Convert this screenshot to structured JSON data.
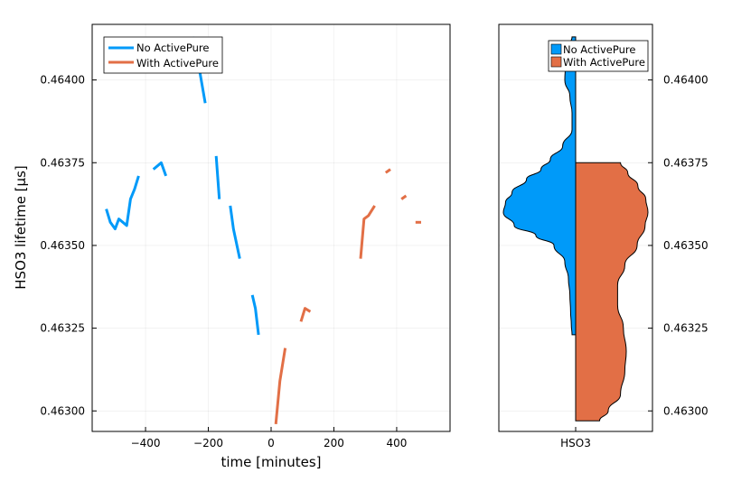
{
  "colors": {
    "no_activepure": "#009af9",
    "with_activepure": "#e26f46"
  },
  "chart_data": [
    {
      "type": "line",
      "xlabel": "time [minutes]",
      "ylabel": "HSO3 lifetime [µs]",
      "xlim": [
        -570,
        570
      ],
      "ylim": [
        0.462938,
        0.464168
      ],
      "xticks": [
        -400,
        -200,
        0,
        200,
        400
      ],
      "xtick_labels": [
        "−400",
        "−200",
        "0",
        "200",
        "400"
      ],
      "yticks": [
        0.463,
        0.46325,
        0.4635,
        0.46375,
        0.464
      ],
      "ytick_labels": [
        "0.46300",
        "0.46325",
        "0.46350",
        "0.46375",
        "0.46400"
      ],
      "grid": true,
      "legend": "top-left",
      "series": [
        {
          "name": "No ActivePure",
          "color": "#009af9",
          "segments": [
            [
              [
                -525,
                0.46361
              ],
              [
                -512,
                0.46357
              ],
              [
                -497,
                0.46355
              ],
              [
                -485,
                0.46358
              ],
              [
                -472,
                0.46357
              ],
              [
                -460,
                0.46356
              ],
              [
                -448,
                0.46364
              ],
              [
                -435,
                0.46367
              ],
              [
                -422,
                0.46371
              ]
            ],
            [
              [
                -375,
                0.46373
              ],
              [
                -350,
                0.46375
              ],
              [
                -335,
                0.46371
              ]
            ],
            [
              [
                -250,
                0.46413
              ],
              [
                -230,
                0.46404
              ],
              [
                -210,
                0.46393
              ]
            ],
            [
              [
                -175,
                0.46377
              ],
              [
                -165,
                0.46364
              ]
            ],
            [
              [
                -130,
                0.46362
              ],
              [
                -120,
                0.46355
              ],
              [
                -100,
                0.46346
              ]
            ],
            [
              [
                -60,
                0.46335
              ],
              [
                -50,
                0.46331
              ],
              [
                -40,
                0.46323
              ]
            ]
          ]
        },
        {
          "name": "With ActivePure",
          "color": "#e26f46",
          "segments": [
            [
              [
                15,
                0.46296
              ],
              [
                28,
                0.46309
              ],
              [
                45,
                0.46319
              ]
            ],
            [
              [
                95,
                0.46327
              ],
              [
                108,
                0.46331
              ],
              [
                125,
                0.4633
              ]
            ],
            [
              [
                285,
                0.46346
              ],
              [
                296,
                0.46358
              ],
              [
                310,
                0.46359
              ],
              [
                330,
                0.46362
              ]
            ],
            [
              [
                365,
                0.46372
              ],
              [
                380,
                0.46373
              ]
            ],
            [
              [
                415,
                0.46364
              ],
              [
                430,
                0.46365
              ]
            ],
            [
              [
                460,
                0.46357
              ],
              [
                478,
                0.46357
              ]
            ]
          ]
        }
      ]
    },
    {
      "type": "violin",
      "categories": [
        "HSO3"
      ],
      "ylim": [
        0.462938,
        0.464168
      ],
      "yticks": [
        0.463,
        0.46325,
        0.4635,
        0.46375,
        0.464
      ],
      "ytick_labels": [
        "0.46300",
        "0.46325",
        "0.46350",
        "0.46375",
        "0.46400"
      ],
      "legend": "top-right",
      "series": [
        {
          "name": "No ActivePure",
          "color": "#009af9",
          "side": "left",
          "profile": [
            [
              0.46323,
              0.05
            ],
            [
              0.46326,
              0.06
            ],
            [
              0.4633,
              0.07
            ],
            [
              0.46335,
              0.08
            ],
            [
              0.4634,
              0.1
            ],
            [
              0.46345,
              0.15
            ],
            [
              0.4635,
              0.3
            ],
            [
              0.46353,
              0.55
            ],
            [
              0.46356,
              0.85
            ],
            [
              0.4636,
              1.0
            ],
            [
              0.46363,
              0.97
            ],
            [
              0.46366,
              0.88
            ],
            [
              0.4637,
              0.68
            ],
            [
              0.46373,
              0.48
            ],
            [
              0.46376,
              0.35
            ],
            [
              0.4638,
              0.18
            ],
            [
              0.46385,
              0.05
            ],
            [
              0.4639,
              0.05
            ],
            [
              0.46395,
              0.08
            ],
            [
              0.464,
              0.15
            ],
            [
              0.46405,
              0.14
            ],
            [
              0.4641,
              0.1
            ],
            [
              0.46413,
              0.05
            ]
          ]
        },
        {
          "name": "With ActivePure",
          "color": "#e26f46",
          "side": "right",
          "profile": [
            [
              0.46297,
              0.33
            ],
            [
              0.463,
              0.45
            ],
            [
              0.46305,
              0.62
            ],
            [
              0.46312,
              0.68
            ],
            [
              0.46318,
              0.7
            ],
            [
              0.46325,
              0.66
            ],
            [
              0.46332,
              0.58
            ],
            [
              0.46338,
              0.58
            ],
            [
              0.46344,
              0.68
            ],
            [
              0.4635,
              0.85
            ],
            [
              0.46356,
              0.96
            ],
            [
              0.4636,
              1.0
            ],
            [
              0.46364,
              0.97
            ],
            [
              0.46368,
              0.86
            ],
            [
              0.46372,
              0.72
            ],
            [
              0.46375,
              0.62
            ]
          ]
        }
      ]
    }
  ]
}
